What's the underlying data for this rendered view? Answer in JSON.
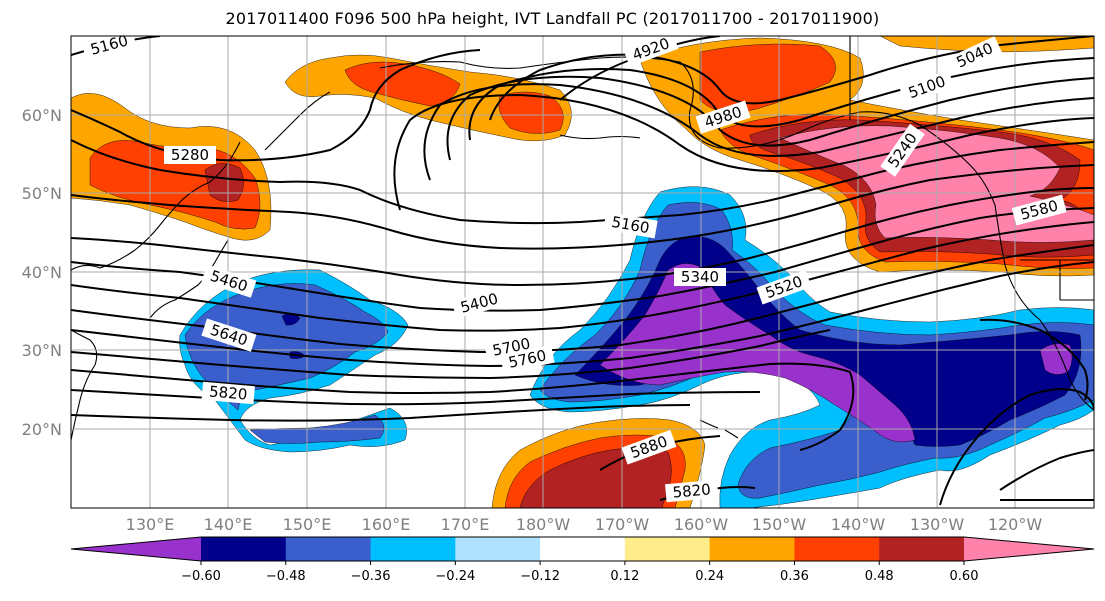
{
  "title": "2017011400 F096 500 hPa height, IVT Landfall PC (2017011700 - 2017011900)",
  "longitude_labels": [
    "130°E",
    "140°E",
    "150°E",
    "160°E",
    "170°E",
    "180°W",
    "170°W",
    "160°W",
    "150°W",
    "140°W",
    "130°W",
    "120°W"
  ],
  "latitude_labels": [
    "60°N",
    "50°N",
    "40°N",
    "30°N",
    "20°N"
  ],
  "contour_labels": [
    "5160",
    "4920",
    "5040",
    "5100",
    "4980",
    "5280",
    "5240",
    "5580",
    "5160",
    "5340",
    "5520",
    "5460",
    "5400",
    "5640",
    "5700",
    "5760",
    "5820",
    "5880",
    "5820"
  ],
  "colorbar": {
    "ticks": [
      "−0.60",
      "−0.48",
      "−0.36",
      "−0.24",
      "−0.12",
      "0.12",
      "0.24",
      "0.36",
      "0.48",
      "0.60"
    ],
    "colors": [
      "#9932CC",
      "#00008B",
      "#3A5FCD",
      "#00BFFF",
      "#B0E2FF",
      "#FFFFFF",
      "#FFEC8B",
      "#FFA500",
      "#FF4000",
      "#B22222",
      "#FF82AB"
    ],
    "extend": "both"
  },
  "fill_colors": {
    "neg_strong": "#9932CC",
    "neg_dark": "#00008B",
    "neg_mid": "#3A5FCD",
    "neg_light": "#00BFFF",
    "neg_pale": "#B0E2FF",
    "pos_pale": "#FFEC8B",
    "pos_light": "#FFA500",
    "pos_mid": "#FF4000",
    "pos_dark": "#B22222",
    "pos_strong": "#FF82AB"
  }
}
